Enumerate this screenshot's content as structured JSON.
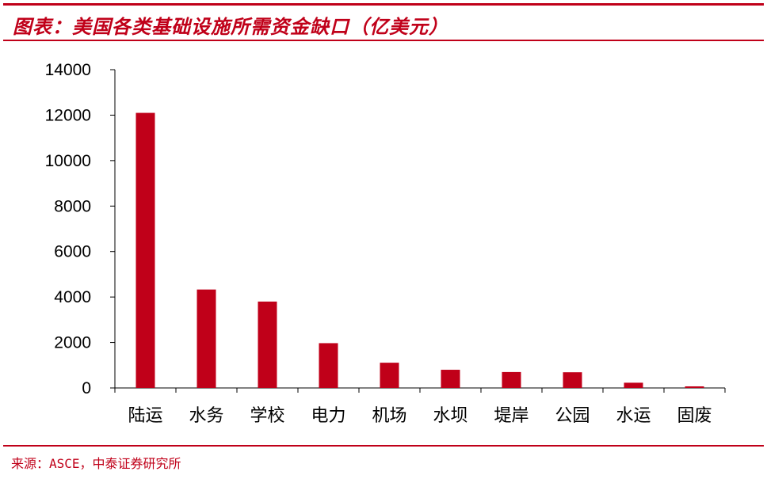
{
  "header": {
    "title": "图表：美国各类基础设施所需资金缺口（亿美元）"
  },
  "footer": {
    "source": "来源：ASCE，中泰证券研究所"
  },
  "colors": {
    "accent": "#c00019",
    "bar": "#c00019"
  },
  "chart_data": {
    "type": "bar",
    "title": "图表：美国各类基础设施所需资金缺口（亿美元）",
    "categories": [
      "陆运",
      "水务",
      "学校",
      "电力",
      "机场",
      "水坝",
      "堤岸",
      "公园",
      "水运",
      "固废"
    ],
    "series": [
      {
        "values": [
          12100,
          4330,
          3800,
          1970,
          1110,
          800,
          700,
          690,
          230,
          70
        ]
      }
    ],
    "ylim": [
      0,
      14000
    ],
    "yticks": [
      "0",
      "2000",
      "4000",
      "6000",
      "8000",
      "10000",
      "12000",
      "14000"
    ],
    "xlabel": "",
    "ylabel": "",
    "grid": false,
    "legend": "none"
  }
}
